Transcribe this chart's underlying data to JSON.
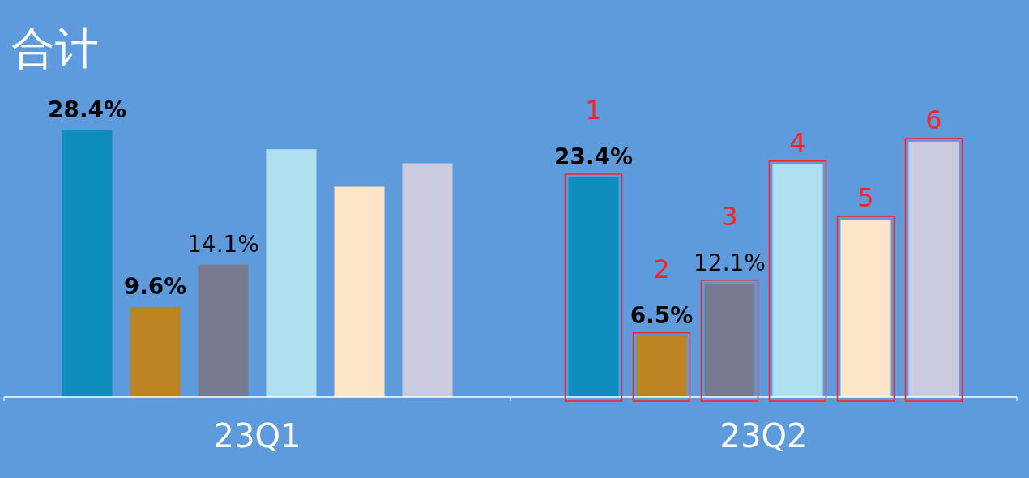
{
  "chart_data": {
    "type": "bar",
    "title": "合计",
    "categories": [
      "23Q1",
      "23Q2"
    ],
    "tick_labels": "x",
    "series": [
      {
        "color": "#0e8dbf",
        "values": [
          28.4,
          23.4
        ],
        "value_labels": [
          "28.4%",
          "23.4%"
        ]
      },
      {
        "color": "#bb8322",
        "values": [
          9.6,
          6.5
        ],
        "value_labels": [
          "9.6%",
          "6.5%"
        ]
      },
      {
        "color": "#787b90",
        "values": [
          14.1,
          12.1
        ],
        "value_labels": [
          "14.1%",
          "12.1%"
        ]
      },
      {
        "color": "#aee0f0",
        "values": [
          26.4,
          24.8
        ],
        "value_labels": [
          null,
          null
        ]
      },
      {
        "color": "#fde6c7",
        "values": [
          22.4,
          18.9
        ],
        "value_labels": [
          null,
          null
        ]
      },
      {
        "color": "#cbcbe0",
        "values": [
          24.9,
          27.2
        ],
        "value_labels": [
          null,
          null
        ]
      }
    ],
    "annotations": [
      "1",
      "2",
      "3",
      "4",
      "5",
      "6"
    ]
  }
}
